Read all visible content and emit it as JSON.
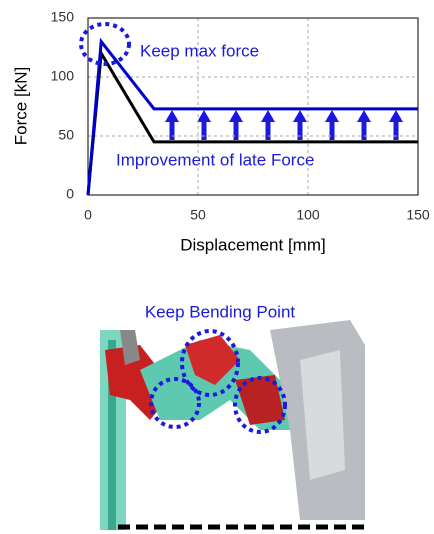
{
  "chart_data": {
    "type": "line",
    "y_label": "Force [kN]",
    "x_label": "Displacement [mm]",
    "annotations": [
      "Keep max force",
      "Improvement of late Force"
    ],
    "x": [
      0,
      6,
      30,
      150
    ],
    "series": [
      {
        "color": "#000000",
        "values": [
          0,
          120,
          45,
          45
        ]
      },
      {
        "color": "#0000cc",
        "values": [
          0,
          130,
          73,
          73
        ]
      }
    ],
    "xlim": [
      0,
      150
    ],
    "ylim": [
      0,
      150
    ],
    "xticks": [
      0,
      50,
      100,
      150
    ],
    "yticks": [
      0,
      50,
      100,
      150
    ],
    "grid": true
  },
  "figure": {
    "caption": "Keep Bending Point"
  }
}
